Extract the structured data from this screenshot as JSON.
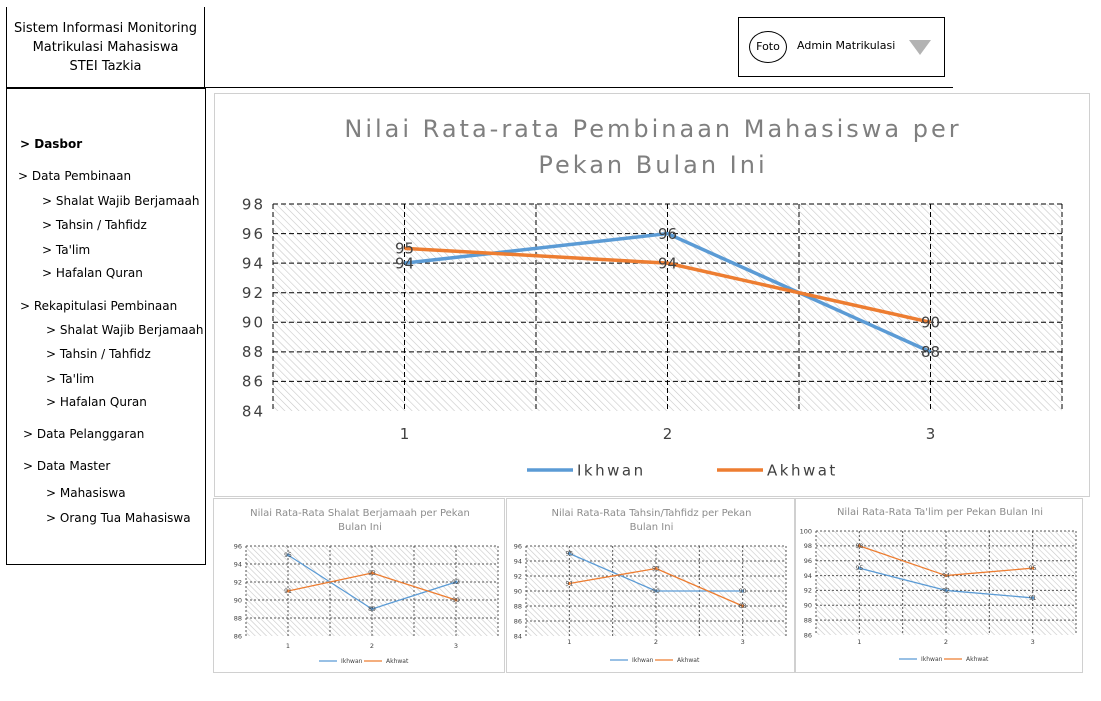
{
  "brand": {
    "line1": "Sistem Informasi Monitoring",
    "line2": "Matrikulasi Mahasiswa",
    "line3": "STEI Tazkia"
  },
  "user": {
    "photo_label": "Foto",
    "name": "Admin Matrikulasi",
    "dropdown_icon": "triangle-down-icon"
  },
  "sidebar": {
    "dasbor": "> Dasbor",
    "data_pembinaan": "> Data Pembinaan",
    "data_pembinaan_items": [
      "> Shalat Wajib Berjamaah",
      "> Tahsin / Tahfidz",
      "> Ta'lim",
      "> Hafalan Quran"
    ],
    "rekap": "> Rekapitulasi  Pembinaan",
    "rekap_items": [
      "> Shalat Wajib Berjamaah",
      "> Tahsin / Tahfidz",
      "> Ta'lim",
      "> Hafalan Quran"
    ],
    "data_pelanggaran": "> Data Pelanggaran",
    "data_master": "> Data Master",
    "data_master_items": [
      "> Mahasiswa",
      "> Orang Tua  Mahasiswa"
    ]
  },
  "colors": {
    "ikhwan": "#5b9bd5",
    "akhwat": "#ed7d31"
  },
  "chart_data": [
    {
      "type": "line",
      "title_lines": [
        "Nilai Rata-rata Pembinaan Mahasiswa per",
        "Pekan Bulan Ini"
      ],
      "categories": [
        "1",
        "2",
        "3"
      ],
      "series": [
        {
          "name": "Ikhwan",
          "values": [
            94,
            96,
            88
          ]
        },
        {
          "name": "Akhwat",
          "values": [
            95,
            94,
            90
          ]
        }
      ],
      "ylim": [
        84,
        98
      ],
      "yticks": [
        84,
        86,
        88,
        90,
        92,
        94,
        96,
        98
      ],
      "data_labels": true,
      "grid": true,
      "legend": "bottom"
    },
    {
      "type": "line",
      "title_lines": [
        "Nilai Rata-Rata Shalat Berjamaah per Pekan",
        "Bulan Ini"
      ],
      "categories": [
        "1",
        "2",
        "3"
      ],
      "series": [
        {
          "name": "Ikhwan",
          "values": [
            95,
            89,
            92
          ]
        },
        {
          "name": "Akhwat",
          "values": [
            91,
            93,
            90
          ]
        }
      ],
      "ylim": [
        86,
        96
      ],
      "yticks": [
        86,
        88,
        90,
        92,
        94,
        96
      ],
      "data_labels": true,
      "grid": true,
      "legend": "bottom"
    },
    {
      "type": "line",
      "title_lines": [
        "Nilai Rata-Rata Tahsin/Tahfidz per Pekan",
        "Bulan Ini"
      ],
      "categories": [
        "1",
        "2",
        "3"
      ],
      "series": [
        {
          "name": "Ikhwan",
          "values": [
            95,
            90,
            90
          ]
        },
        {
          "name": "Akhwat",
          "values": [
            91,
            93,
            88
          ]
        }
      ],
      "ylim": [
        84,
        96
      ],
      "yticks": [
        84,
        86,
        88,
        90,
        92,
        94,
        96
      ],
      "data_labels": true,
      "grid": true,
      "legend": "bottom"
    },
    {
      "type": "line",
      "title_lines": [
        "Nilai Rata-Rata Ta'lim per Pekan Bulan Ini"
      ],
      "categories": [
        "1",
        "2",
        "3"
      ],
      "series": [
        {
          "name": "Ikhwan",
          "values": [
            95,
            92,
            91
          ]
        },
        {
          "name": "Akhwat",
          "values": [
            98,
            94,
            95
          ]
        }
      ],
      "ylim": [
        86,
        100
      ],
      "yticks": [
        86,
        88,
        90,
        92,
        94,
        96,
        98,
        100
      ],
      "data_labels": true,
      "grid": true,
      "legend": "bottom"
    }
  ]
}
